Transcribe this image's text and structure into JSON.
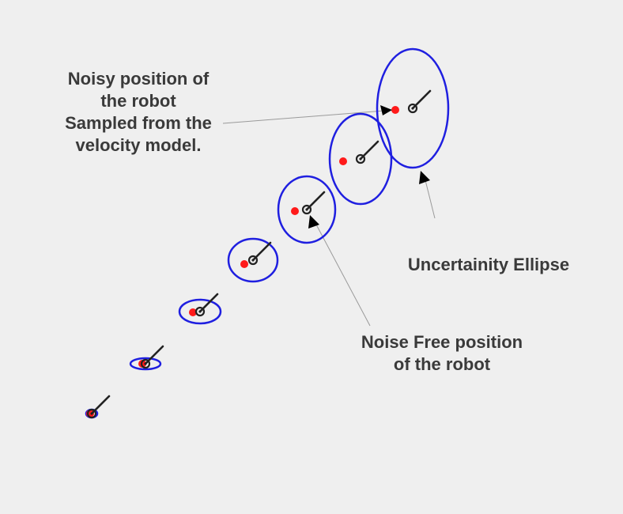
{
  "colors": {
    "background": "#efefef",
    "ellipse": "#1f1fe0",
    "noisy_point": "#ff1a1a",
    "robot": "#222222",
    "leader": "#9a9a9a",
    "text": "#3a3a3a"
  },
  "labels": {
    "noisy": {
      "line1": "Noisy position of",
      "line2": "the robot",
      "line3": "Sampled from the",
      "line4": "velocity model."
    },
    "uncertainty": "Uncertainity Ellipse",
    "noise_free": {
      "line1": "Noise Free position",
      "line2": "of the robot"
    }
  },
  "samples": [
    {
      "id": 1,
      "uncertainty_level": 0
    },
    {
      "id": 2,
      "uncertainty_level": 1
    },
    {
      "id": 3,
      "uncertainty_level": 2
    },
    {
      "id": 4,
      "uncertainty_level": 3
    },
    {
      "id": 5,
      "uncertainty_level": 4
    },
    {
      "id": 6,
      "uncertainty_level": 5
    },
    {
      "id": 7,
      "uncertainty_level": 6
    }
  ]
}
